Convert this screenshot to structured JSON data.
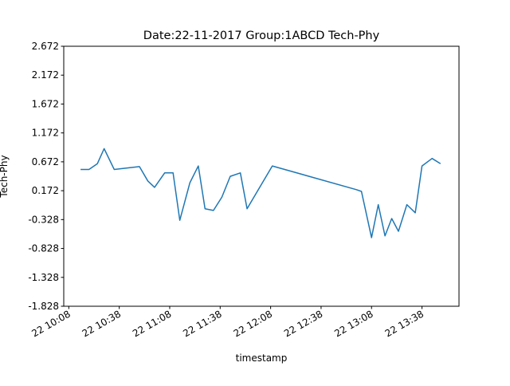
{
  "chart_data": {
    "type": "line",
    "title": "Date:22-11-2017 Group:1ABCD Tech-Phy",
    "x_label": "timestamp",
    "y_label": "Tech-Phy",
    "x": [
      "22 10:15",
      "22 10:20",
      "22 10:25",
      "22 10:29",
      "22 10:35",
      "22 10:50",
      "22 10:55",
      "22 10:59",
      "22 11:05",
      "22 11:10",
      "22 11:14",
      "22 11:20",
      "22 11:25",
      "22 11:29",
      "22 11:34",
      "22 11:39",
      "22 11:44",
      "22 11:50",
      "22 11:54",
      "22 12:09",
      "22 12:59",
      "22 13:02",
      "22 13:08",
      "22 13:12",
      "22 13:16",
      "22 13:20",
      "22 13:24",
      "22 13:29",
      "22 13:34",
      "22 13:38",
      "22 13:44",
      "22 13:49"
    ],
    "values": [
      0.54,
      0.54,
      0.64,
      0.9,
      0.54,
      0.59,
      0.34,
      0.23,
      0.48,
      0.48,
      -0.34,
      0.31,
      0.6,
      -0.14,
      -0.17,
      0.06,
      0.42,
      0.48,
      -0.14,
      0.6,
      0.19,
      0.16,
      -0.64,
      -0.07,
      -0.61,
      -0.31,
      -0.53,
      -0.07,
      -0.21,
      0.6,
      0.73,
      0.64
    ],
    "color": "#1f77b4",
    "xlim": [
      "22 10:05",
      "22 14:00"
    ],
    "xticks": [
      "22 10:08",
      "22 10:38",
      "22 11:08",
      "22 11:38",
      "22 12:08",
      "22 12:38",
      "22 13:08",
      "22 13:38"
    ],
    "ylim": [
      -1.828,
      2.672
    ],
    "yticks": [
      -1.828,
      -1.328,
      -0.828,
      -0.328,
      0.172,
      0.672,
      1.172,
      1.672,
      2.172,
      2.672
    ]
  }
}
